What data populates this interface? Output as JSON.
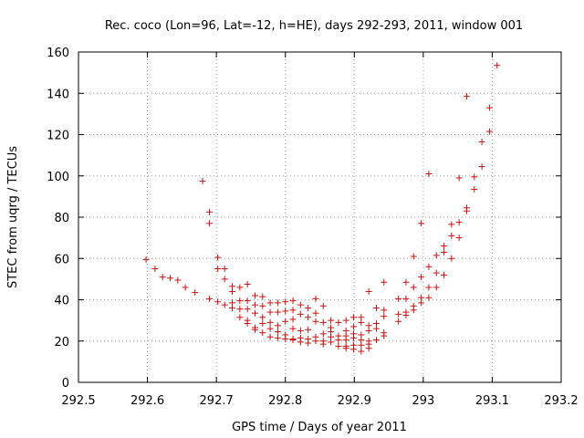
{
  "chart_data": {
    "type": "scatter",
    "title": "Rec. coco (Lon=96, Lat=-12, h=HE), days 292-293, 2011, window 001",
    "xlabel": "GPS time / Days of year 2011",
    "ylabel": "STEC from uqrg / TECUs",
    "xlim": [
      292.5,
      293.2
    ],
    "ylim": [
      0,
      160
    ],
    "grid": true,
    "marker": "+",
    "marker_color": "#cc1111",
    "xticks": [
      292.5,
      292.6,
      292.7,
      292.8,
      292.9,
      293.0,
      293.1,
      293.2
    ],
    "xtick_labels": [
      "292.5",
      "292.6",
      "292.7",
      "292.8",
      "292.9",
      "293",
      "293.1",
      "293.2"
    ],
    "yticks": [
      0,
      20,
      40,
      60,
      80,
      100,
      120,
      140,
      160
    ],
    "ytick_labels": [
      "0",
      "20",
      "40",
      "60",
      "80",
      "100",
      "120",
      "140",
      "160"
    ],
    "points": [
      [
        292.598,
        59.5
      ],
      [
        292.611,
        55
      ],
      [
        292.622,
        51
      ],
      [
        292.633,
        50.5
      ],
      [
        292.644,
        49.5
      ],
      [
        292.655,
        46
      ],
      [
        292.669,
        43.5
      ],
      [
        292.68,
        97.5
      ],
      [
        292.69,
        40.5
      ],
      [
        292.69,
        82.5
      ],
      [
        292.69,
        77
      ],
      [
        292.702,
        60.5
      ],
      [
        292.702,
        55
      ],
      [
        292.702,
        39
      ],
      [
        292.712,
        55
      ],
      [
        292.712,
        50
      ],
      [
        292.712,
        37.5
      ],
      [
        292.723,
        46.5
      ],
      [
        292.723,
        44
      ],
      [
        292.723,
        38.5
      ],
      [
        292.723,
        36
      ],
      [
        292.734,
        46
      ],
      [
        292.734,
        39.5
      ],
      [
        292.734,
        35.5
      ],
      [
        292.734,
        31.5
      ],
      [
        292.745,
        47.5
      ],
      [
        292.745,
        39.5
      ],
      [
        292.745,
        35.5
      ],
      [
        292.745,
        30
      ],
      [
        292.745,
        28.5
      ],
      [
        292.756,
        42
      ],
      [
        292.756,
        37.5
      ],
      [
        292.756,
        33.5
      ],
      [
        292.756,
        26.5
      ],
      [
        292.756,
        25.5
      ],
      [
        292.767,
        41.5
      ],
      [
        292.767,
        37
      ],
      [
        292.767,
        31.5
      ],
      [
        292.767,
        28.5
      ],
      [
        292.767,
        24
      ],
      [
        292.778,
        38.5
      ],
      [
        292.778,
        34
      ],
      [
        292.778,
        29
      ],
      [
        292.778,
        26
      ],
      [
        292.778,
        22
      ],
      [
        292.789,
        38.5
      ],
      [
        292.789,
        34
      ],
      [
        292.789,
        27.5
      ],
      [
        292.789,
        24.5
      ],
      [
        292.789,
        21.5
      ],
      [
        292.8,
        39
      ],
      [
        292.8,
        34.5
      ],
      [
        292.8,
        29.5
      ],
      [
        292.8,
        23
      ],
      [
        292.8,
        21
      ],
      [
        292.811,
        39.5
      ],
      [
        292.811,
        35
      ],
      [
        292.811,
        30.5
      ],
      [
        292.811,
        26
      ],
      [
        292.811,
        21
      ],
      [
        292.811,
        20.5
      ],
      [
        292.822,
        37.5
      ],
      [
        292.822,
        33
      ],
      [
        292.822,
        25
      ],
      [
        292.822,
        21.5
      ],
      [
        292.822,
        19.5
      ],
      [
        292.833,
        36
      ],
      [
        292.833,
        31.5
      ],
      [
        292.833,
        25.5
      ],
      [
        292.833,
        21
      ],
      [
        292.833,
        19
      ],
      [
        292.844,
        40.5
      ],
      [
        292.844,
        33.5
      ],
      [
        292.844,
        29.5
      ],
      [
        292.844,
        22
      ],
      [
        292.844,
        20
      ],
      [
        292.855,
        37
      ],
      [
        292.855,
        29
      ],
      [
        292.855,
        23.5
      ],
      [
        292.855,
        20
      ],
      [
        292.855,
        18.5
      ],
      [
        292.866,
        30
      ],
      [
        292.866,
        26.5
      ],
      [
        292.866,
        24.5
      ],
      [
        292.866,
        22
      ],
      [
        292.866,
        19.5
      ],
      [
        292.877,
        29
      ],
      [
        292.877,
        22.5
      ],
      [
        292.877,
        20.5
      ],
      [
        292.877,
        17.5
      ],
      [
        292.888,
        30
      ],
      [
        292.888,
        25
      ],
      [
        292.888,
        22.5
      ],
      [
        292.888,
        20.5
      ],
      [
        292.888,
        17.5
      ],
      [
        292.888,
        16.5
      ],
      [
        292.899,
        31.5
      ],
      [
        292.899,
        27
      ],
      [
        292.899,
        23.5
      ],
      [
        292.899,
        21.5
      ],
      [
        292.899,
        18
      ],
      [
        292.899,
        16
      ],
      [
        292.91,
        31.5
      ],
      [
        292.91,
        29
      ],
      [
        292.91,
        23
      ],
      [
        292.91,
        20.5
      ],
      [
        292.91,
        18
      ],
      [
        292.91,
        15
      ],
      [
        292.921,
        44
      ],
      [
        292.921,
        27.5
      ],
      [
        292.921,
        25
      ],
      [
        292.921,
        20
      ],
      [
        292.921,
        18.5
      ],
      [
        292.921,
        16.5
      ],
      [
        292.932,
        36
      ],
      [
        292.932,
        28.5
      ],
      [
        292.932,
        26
      ],
      [
        292.932,
        20.5
      ],
      [
        292.943,
        48.5
      ],
      [
        292.943,
        35
      ],
      [
        292.943,
        32
      ],
      [
        292.943,
        24
      ],
      [
        292.943,
        22.5
      ],
      [
        292.964,
        40.5
      ],
      [
        292.964,
        33
      ],
      [
        292.964,
        29.5
      ],
      [
        292.975,
        48.5
      ],
      [
        292.975,
        40.5
      ],
      [
        292.975,
        34
      ],
      [
        292.975,
        32.5
      ],
      [
        292.986,
        61
      ],
      [
        292.986,
        46
      ],
      [
        292.986,
        37
      ],
      [
        292.986,
        35
      ],
      [
        292.997,
        77
      ],
      [
        292.997,
        51
      ],
      [
        292.997,
        41
      ],
      [
        292.997,
        38.5
      ],
      [
        293.008,
        101
      ],
      [
        293.008,
        56
      ],
      [
        293.008,
        46
      ],
      [
        293.008,
        41
      ],
      [
        293.019,
        61.5
      ],
      [
        293.019,
        53
      ],
      [
        293.019,
        46
      ],
      [
        293.03,
        66
      ],
      [
        293.03,
        63
      ],
      [
        293.03,
        52
      ],
      [
        293.041,
        76.5
      ],
      [
        293.041,
        71
      ],
      [
        293.041,
        60
      ],
      [
        293.052,
        99
      ],
      [
        293.052,
        77.5
      ],
      [
        293.052,
        70
      ],
      [
        293.063,
        138.5
      ],
      [
        293.063,
        84.5
      ],
      [
        293.063,
        83
      ],
      [
        293.074,
        99.5
      ],
      [
        293.074,
        93.5
      ],
      [
        293.085,
        116.5
      ],
      [
        293.085,
        104.5
      ],
      [
        293.096,
        133
      ],
      [
        293.096,
        121.5
      ],
      [
        293.107,
        153.5
      ]
    ]
  }
}
